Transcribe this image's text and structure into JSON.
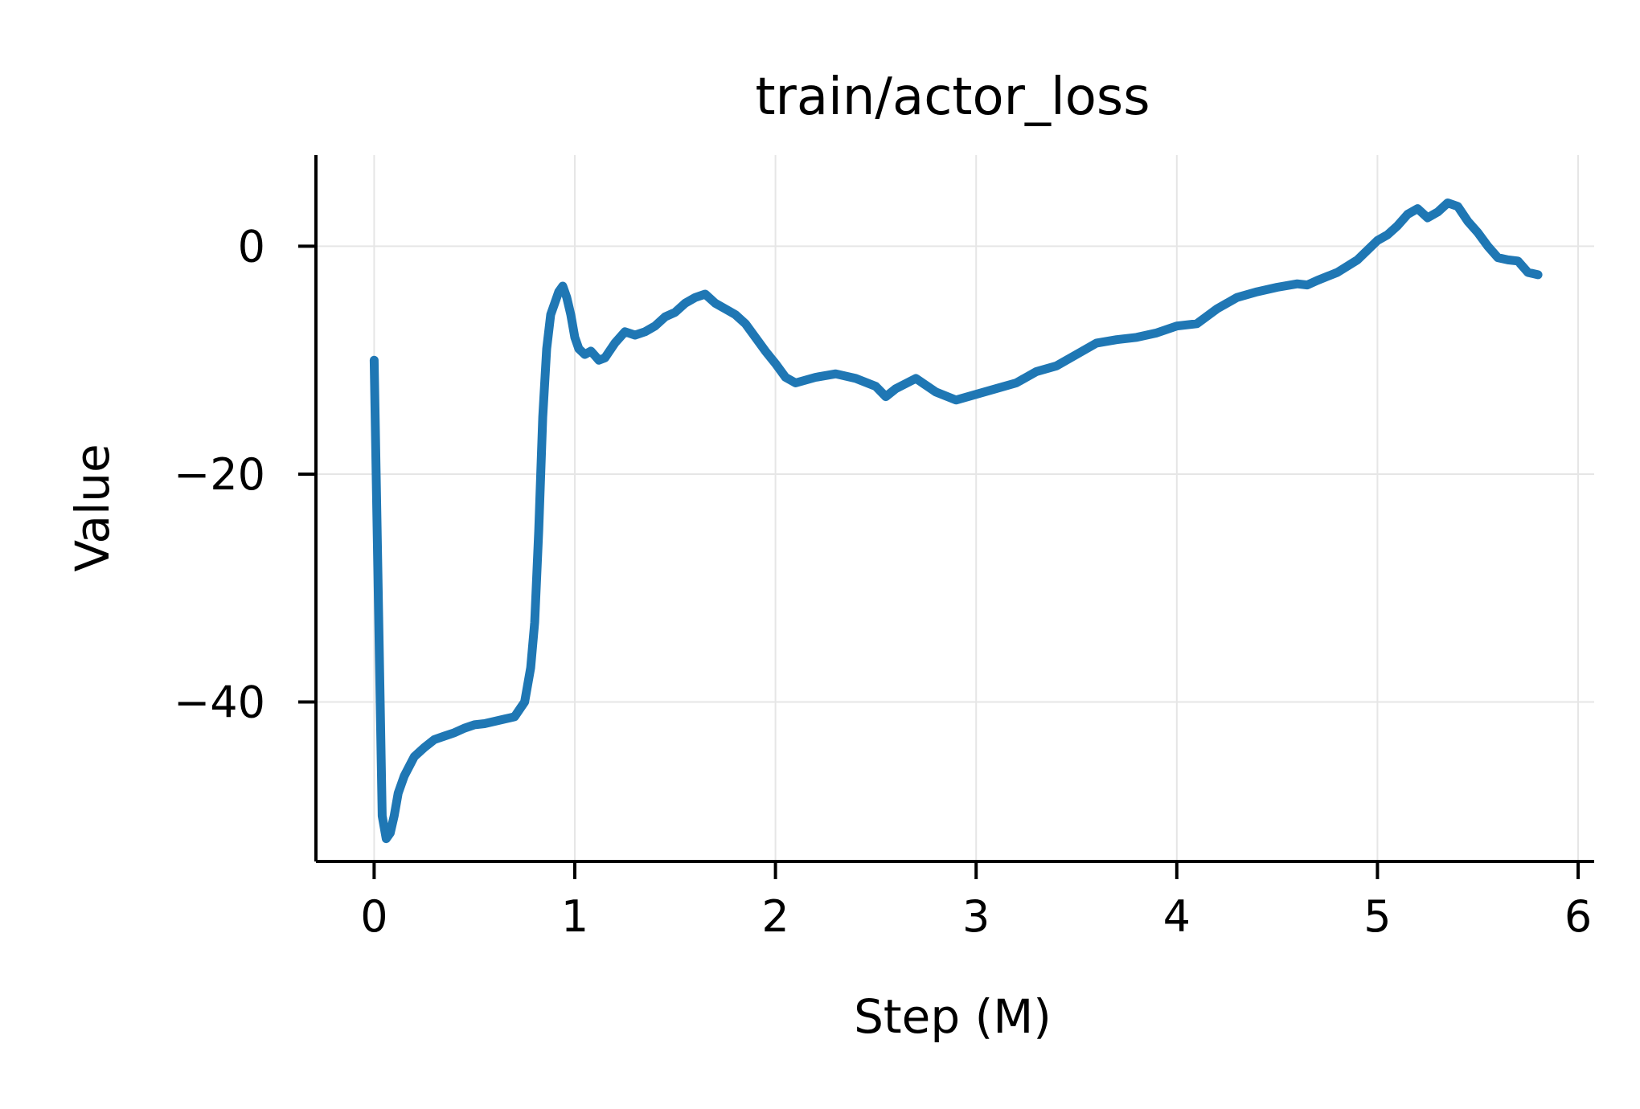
{
  "chart_data": {
    "type": "line",
    "title": "train/actor_loss",
    "xlabel": "Step (M)",
    "ylabel": "Value",
    "xlim": [
      -0.29,
      6.08
    ],
    "ylim": [
      -54,
      8
    ],
    "xticks": [
      0,
      1,
      2,
      3,
      4,
      5,
      6
    ],
    "xtick_labels": [
      "0",
      "1",
      "2",
      "3",
      "4",
      "5",
      "6"
    ],
    "yticks": [
      0,
      -20,
      -40
    ],
    "ytick_labels": [
      "0",
      "−20",
      "−40"
    ],
    "grid": true,
    "line_color": "#1f77b4",
    "series": [
      {
        "x": [
          0.0,
          0.02,
          0.04,
          0.06,
          0.08,
          0.1,
          0.12,
          0.15,
          0.2,
          0.25,
          0.3,
          0.35,
          0.4,
          0.45,
          0.5,
          0.55,
          0.6,
          0.65,
          0.7,
          0.75,
          0.78,
          0.8,
          0.82,
          0.84,
          0.86,
          0.88,
          0.9,
          0.92,
          0.94,
          0.96,
          0.98,
          1.0,
          1.02,
          1.05,
          1.08,
          1.1,
          1.12,
          1.15,
          1.2,
          1.25,
          1.3,
          1.35,
          1.4,
          1.45,
          1.5,
          1.55,
          1.6,
          1.65,
          1.7,
          1.75,
          1.8,
          1.85,
          1.9,
          1.95,
          2.0,
          2.05,
          2.1,
          2.2,
          2.3,
          2.4,
          2.5,
          2.55,
          2.6,
          2.7,
          2.8,
          2.9,
          3.0,
          3.1,
          3.2,
          3.3,
          3.4,
          3.5,
          3.6,
          3.7,
          3.8,
          3.9,
          4.0,
          4.1,
          4.2,
          4.3,
          4.4,
          4.5,
          4.6,
          4.65,
          4.7,
          4.8,
          4.9,
          5.0,
          5.05,
          5.1,
          5.15,
          5.2,
          5.25,
          5.3,
          5.35,
          5.4,
          5.45,
          5.5,
          5.55,
          5.6,
          5.65,
          5.7,
          5.75,
          5.8
        ],
        "y": [
          -10,
          -30,
          -50,
          -52,
          -51.5,
          -50,
          -48,
          -46.5,
          -44.8,
          -44,
          -43.3,
          -43,
          -42.7,
          -42.3,
          -42,
          -41.9,
          -41.7,
          -41.5,
          -41.3,
          -40,
          -37,
          -33,
          -25,
          -15,
          -9,
          -6,
          -5,
          -4,
          -3.5,
          -4.5,
          -6,
          -8,
          -9,
          -9.5,
          -9.2,
          -9.6,
          -10,
          -9.8,
          -8.5,
          -7.5,
          -7.8,
          -7.5,
          -7,
          -6.2,
          -5.8,
          -5,
          -4.5,
          -4.2,
          -5,
          -5.5,
          -6,
          -6.8,
          -8,
          -9.2,
          -10.3,
          -11.5,
          -12,
          -11.5,
          -11.2,
          -11.6,
          -12.3,
          -13.2,
          -12.5,
          -11.6,
          -12.8,
          -13.5,
          -13,
          -12.5,
          -12,
          -11,
          -10.5,
          -9.5,
          -8.5,
          -8.2,
          -8,
          -7.6,
          -7,
          -6.8,
          -5.5,
          -4.5,
          -4,
          -3.6,
          -3.3,
          -3.4,
          -3,
          -2.3,
          -1.2,
          0.5,
          1,
          1.8,
          2.8,
          3.3,
          2.5,
          3,
          3.8,
          3.5,
          2.2,
          1.2,
          0,
          -1,
          -1.2,
          -1.3,
          -2.3,
          -2.5
        ]
      }
    ]
  }
}
